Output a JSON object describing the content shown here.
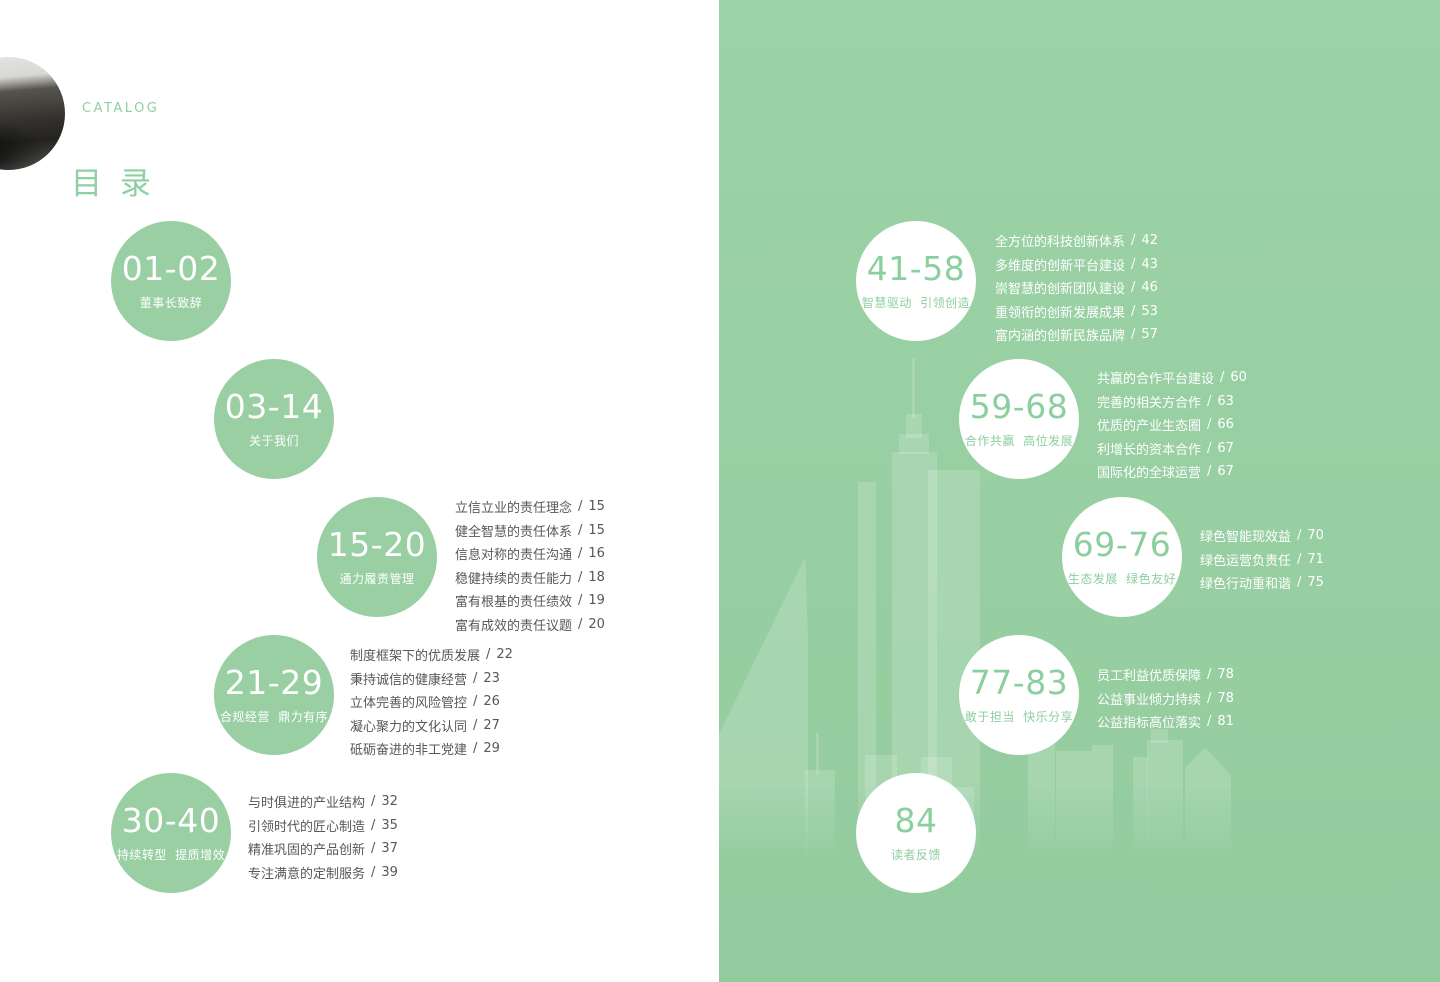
{
  "ui": {
    "separator": "/"
  },
  "header": {
    "catalog_label": "CATALOG",
    "title": "目 录"
  },
  "colors": {
    "panel_green": "#99cfa3",
    "accent_green": "#8ccf9f",
    "text_gray": "#595757",
    "white": "#ffffff"
  },
  "left_sections": [
    {
      "range": "01-02",
      "caption": "董事长致辞",
      "items": []
    },
    {
      "range": "03-14",
      "caption": "关于我们",
      "items": []
    },
    {
      "range": "15-20",
      "caption": "通力履责管理",
      "items": [
        {
          "title": "立信立业的责任理念",
          "page": "15"
        },
        {
          "title": "健全智慧的责任体系",
          "page": "15"
        },
        {
          "title": "信息对称的责任沟通",
          "page": "16"
        },
        {
          "title": "稳健持续的责任能力",
          "page": "18"
        },
        {
          "title": "富有根基的责任绩效",
          "page": "19"
        },
        {
          "title": "富有成效的责任议题",
          "page": "20"
        }
      ]
    },
    {
      "range": "21-29",
      "caption": "合规经营 鼎力有序",
      "items": [
        {
          "title": "制度框架下的优质发展",
          "page": "22"
        },
        {
          "title": "秉持诚信的健康经营",
          "page": "23"
        },
        {
          "title": "立体完善的风险管控",
          "page": "26"
        },
        {
          "title": "凝心聚力的文化认同",
          "page": "27"
        },
        {
          "title": "砥砺奋进的非工党建",
          "page": "29"
        }
      ]
    },
    {
      "range": "30-40",
      "caption": "持续转型 提质增效",
      "items": [
        {
          "title": "与时俱进的产业结构",
          "page": "32"
        },
        {
          "title": "引领时代的匠心制造",
          "page": "35"
        },
        {
          "title": "精准巩固的产品创新",
          "page": "37"
        },
        {
          "title": "专注满意的定制服务",
          "page": "39"
        }
      ]
    }
  ],
  "right_sections": [
    {
      "range": "41-58",
      "caption": "智慧驱动 引领创造",
      "items": [
        {
          "title": "全方位的科技创新体系",
          "page": "42"
        },
        {
          "title": "多维度的创新平台建设",
          "page": "43"
        },
        {
          "title": "崇智慧的创新团队建设",
          "page": "46"
        },
        {
          "title": "重领衔的创新发展成果",
          "page": "53"
        },
        {
          "title": "富内涵的创新民族品牌",
          "page": "57"
        }
      ]
    },
    {
      "range": "59-68",
      "caption": "合作共赢 高位发展",
      "items": [
        {
          "title": "共赢的合作平台建设",
          "page": "60"
        },
        {
          "title": "完善的相关方合作",
          "page": "63"
        },
        {
          "title": "优质的产业生态圈",
          "page": "66"
        },
        {
          "title": "利增长的资本合作",
          "page": "67"
        },
        {
          "title": "国际化的全球运营",
          "page": "67"
        }
      ]
    },
    {
      "range": "69-76",
      "caption": "生态发展 绿色友好",
      "items": [
        {
          "title": "绿色智能现效益",
          "page": "70"
        },
        {
          "title": "绿色运营负责任",
          "page": "71"
        },
        {
          "title": "绿色行动重和谐",
          "page": "75"
        }
      ]
    },
    {
      "range": "77-83",
      "caption": "敢于担当 快乐分享",
      "items": [
        {
          "title": "员工利益优质保障",
          "page": "78"
        },
        {
          "title": "公益事业倾力持续",
          "page": "78"
        },
        {
          "title": "公益指标高位落实",
          "page": "81"
        }
      ]
    },
    {
      "range": "84",
      "caption": "读者反馈",
      "items": []
    }
  ]
}
